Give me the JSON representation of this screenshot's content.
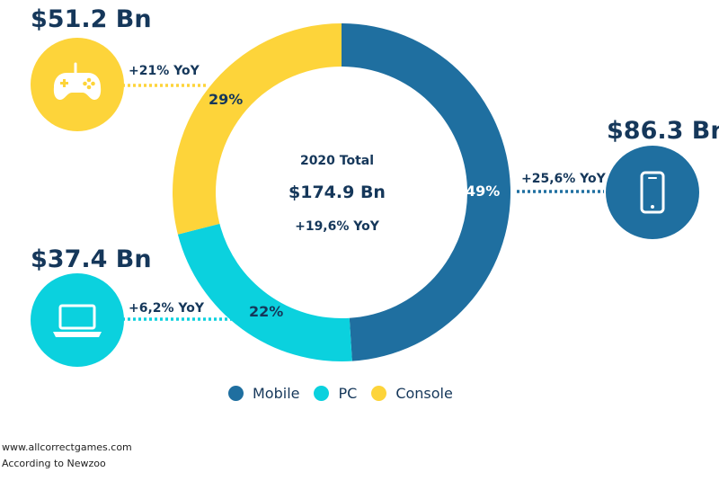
{
  "chart_data": {
    "type": "pie",
    "categories": [
      "Mobile",
      "PC",
      "Console"
    ],
    "values": [
      49,
      22,
      29
    ],
    "value_labels": [
      "49%",
      "22%",
      "29%"
    ],
    "amounts": [
      "$86.3 Bn",
      "$37.4 Bn",
      "$51.2 Bn"
    ],
    "yoy": [
      "+25,6% YoY",
      "+6,2% YoY",
      "+21% YoY"
    ],
    "colors": [
      "#1f6fa0",
      "#0bd1de",
      "#fdd43a"
    ],
    "center": {
      "title": "2020 Total",
      "value": "$174.9 Bn",
      "yoy": "+19,6% YoY"
    },
    "legend_position": "bottom"
  },
  "icons": {
    "mobile": "smartphone-icon",
    "pc": "laptop-icon",
    "console": "gamepad-icon"
  },
  "footer": {
    "site": "www.allcorrectgames.com",
    "source": "According to Newzoo"
  }
}
